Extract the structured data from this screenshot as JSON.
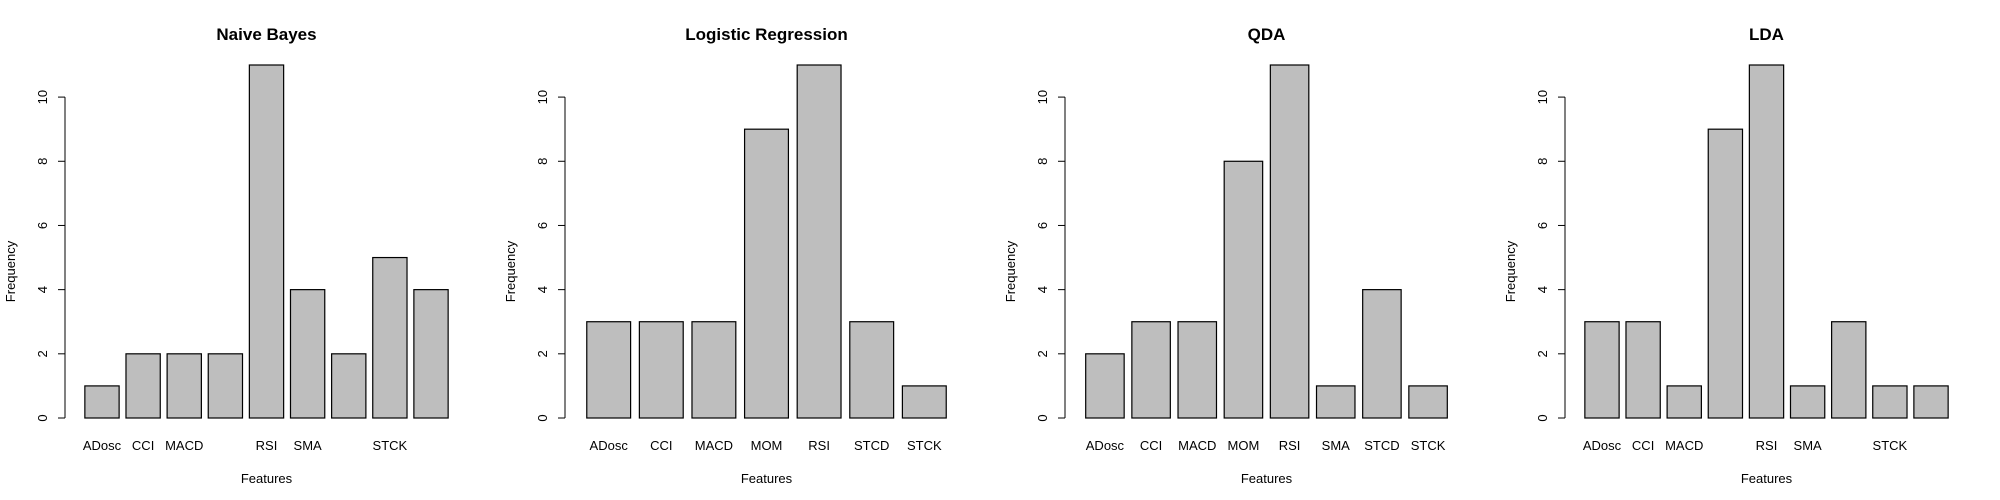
{
  "chart_data": [
    {
      "type": "bar",
      "title": "Naive Bayes",
      "xlabel": "Features",
      "ylabel": "Frequency",
      "ylim": [
        0,
        11
      ],
      "yticks": [
        0,
        2,
        4,
        6,
        8,
        10
      ],
      "categories": [
        "ADosc",
        "CCI",
        "MACD",
        "",
        "RSI",
        "SMA",
        "",
        "STCK",
        ""
      ],
      "values": [
        1,
        2,
        2,
        2,
        11,
        4,
        2,
        5,
        4
      ]
    },
    {
      "type": "bar",
      "title": "Logistic Regression",
      "xlabel": "Features",
      "ylabel": "Frequency",
      "ylim": [
        0,
        11
      ],
      "yticks": [
        0,
        2,
        4,
        6,
        8,
        10
      ],
      "categories": [
        "ADosc",
        "CCI",
        "MACD",
        "MOM",
        "RSI",
        "STCD",
        "STCK"
      ],
      "values": [
        3,
        3,
        3,
        9,
        11,
        3,
        1
      ]
    },
    {
      "type": "bar",
      "title": "QDA",
      "xlabel": "Features",
      "ylabel": "Frequency",
      "ylim": [
        0,
        11
      ],
      "yticks": [
        0,
        2,
        4,
        6,
        8,
        10
      ],
      "categories": [
        "ADosc",
        "CCI",
        "MACD",
        "MOM",
        "RSI",
        "SMA",
        "STCD",
        "STCK"
      ],
      "values": [
        2,
        3,
        3,
        8,
        11,
        1,
        4,
        1
      ]
    },
    {
      "type": "bar",
      "title": "LDA",
      "xlabel": "Features",
      "ylabel": "Frequency",
      "ylim": [
        0,
        11
      ],
      "yticks": [
        0,
        2,
        4,
        6,
        8,
        10
      ],
      "categories": [
        "ADosc",
        "CCI",
        "MACD",
        "",
        "RSI",
        "SMA",
        "",
        "STCK",
        ""
      ],
      "values": [
        3,
        3,
        1,
        9,
        11,
        1,
        3,
        1,
        1
      ]
    }
  ]
}
